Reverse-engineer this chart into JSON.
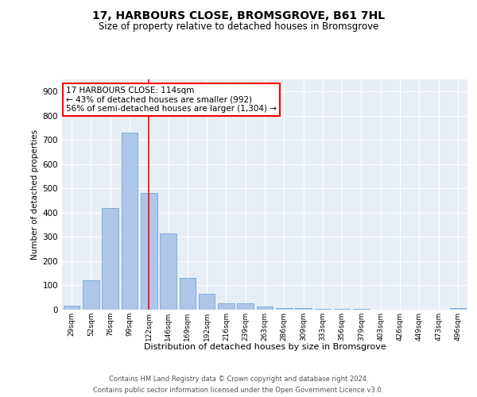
{
  "title_line1": "17, HARBOURS CLOSE, BROMSGROVE, B61 7HL",
  "title_line2": "Size of property relative to detached houses in Bromsgrove",
  "xlabel": "Distribution of detached houses by size in Bromsgrove",
  "ylabel": "Number of detached properties",
  "bar_categories": [
    "29sqm",
    "52sqm",
    "76sqm",
    "99sqm",
    "122sqm",
    "146sqm",
    "169sqm",
    "192sqm",
    "216sqm",
    "239sqm",
    "263sqm",
    "286sqm",
    "309sqm",
    "333sqm",
    "356sqm",
    "379sqm",
    "403sqm",
    "426sqm",
    "449sqm",
    "473sqm",
    "496sqm"
  ],
  "bar_values": [
    18,
    122,
    418,
    730,
    483,
    315,
    130,
    65,
    25,
    25,
    12,
    8,
    5,
    4,
    4,
    3,
    0,
    0,
    0,
    0,
    7
  ],
  "bar_color": "#aec6e8",
  "bar_edge_color": "#5a9fd4",
  "vline_color": "red",
  "annotation_text": "17 HARBOURS CLOSE: 114sqm\n← 43% of detached houses are smaller (992)\n56% of semi-detached houses are larger (1,304) →",
  "annotation_box_color": "white",
  "annotation_box_edge": "red",
  "ylim": [
    0,
    950
  ],
  "yticks": [
    0,
    100,
    200,
    300,
    400,
    500,
    600,
    700,
    800,
    900
  ],
  "bg_color": "#e8eef5",
  "footer_line1": "Contains HM Land Registry data © Crown copyright and database right 2024.",
  "footer_line2": "Contains public sector information licensed under the Open Government Licence v3.0."
}
